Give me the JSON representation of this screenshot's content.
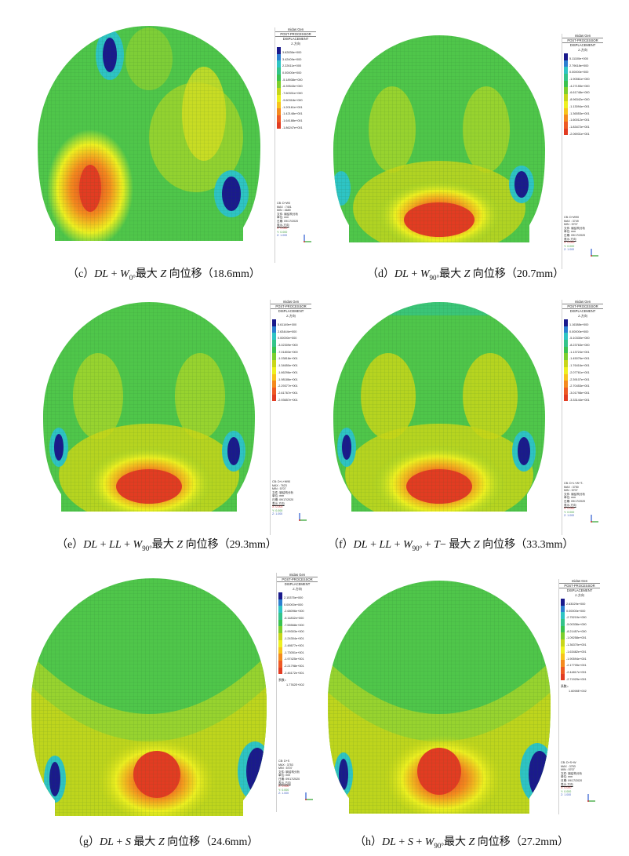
{
  "legend_header": {
    "product": "midas Gen",
    "processor": "POST-PROCESSOR",
    "result": "DISPLACEMENT",
    "component": "Z-方向"
  },
  "legend_colors": [
    "#1a1a8c",
    "#2b7fd0",
    "#2ec4c4",
    "#33c48a",
    "#39c24f",
    "#7ccf2c",
    "#c8d619",
    "#eef020",
    "#f7c41c",
    "#f48a1e",
    "#ee5a24",
    "#e23c22"
  ],
  "panels": [
    {
      "id": "c",
      "caption": {
        "prefix": "（c）",
        "p1": "DL",
        "plus1": " + ",
        "p2": "W",
        "sub": "0°",
        "rest": "最大 ",
        "z": "Z",
        "tail": " 向位移（18.6mm）"
      },
      "legend_values": [
        "3.62836e+000",
        "3.42409e+000",
        "2.22611e+000",
        "0.00000e+000",
        "-5.18938e+000",
        "-6.39543e+000",
        "-7.60331e+000",
        "-9.60318e+000",
        "-1.20161e+001",
        "-1.42148e+001",
        "-1.64188e+001",
        "-1.86247e+001"
      ],
      "info": {
        "cb": "CB: D+W0",
        "max": "MAX : 7401",
        "min": "MIN : 4689",
        "file": "文件: 钢结构分析",
        "unit": "单位: mm",
        "date": "日期: 09/17/2020",
        "view": "表示-方向",
        "x": "X: 0.000",
        "y": "Y: 0.000",
        "z": "Z: 1.000"
      }
    },
    {
      "id": "d",
      "caption": {
        "prefix": "（d）",
        "p1": "DL",
        "plus1": " + ",
        "p2": "W",
        "sub": "90°",
        "rest": "最大 ",
        "z": "Z",
        "tail": " 向位移（20.7mm）"
      },
      "legend_values": [
        "5.11100e+000",
        "2.79618e+000",
        "0.00000e+000",
        "-1.90561e+000",
        "-4.27155e+000",
        "-6.61748e+000",
        "-8.96342e+000",
        "-1.13094e+001",
        "-1.36553e+001",
        "-1.60012e+001",
        "-1.83472e+001",
        "-2.06931e+001"
      ],
      "info": {
        "cb": "CB: D+W90",
        "max": "MAX : 3749",
        "min": "MIN : 5707",
        "file": "文件: 钢结构分析",
        "unit": "单位: mm",
        "date": "日期: 09/17/2020",
        "view": "表示-方向",
        "x": "X: 0.000",
        "y": "Y: 0.000",
        "z": "Z: 1.000"
      }
    },
    {
      "id": "e",
      "caption": {
        "prefix": "（e）",
        "p1": "DL",
        "plus1": " + ",
        "p2": "LL",
        "plus2": " + ",
        "p3": "W",
        "sub": "90°",
        "rest": "最大 ",
        "z": "Z",
        "tail": " 向位移（29.3mm）"
      },
      "legend_values": [
        "5.61149e+000",
        "2.63444e+000",
        "0.00000e+000",
        "-3.02309e+000",
        "-7.01803e+000",
        "-1.03818e+001",
        "-1.34650e+001",
        "-1.66296e+001",
        "-1.98186e+001",
        "-2.29377e+001",
        "-2.61767e+001",
        "-2.93657e+001"
      ],
      "info": {
        "cb": "CB: D+L+W90",
        "max": "MAX : 7623",
        "min": "MIN : 5707",
        "file": "文件: 钢结构分析",
        "unit": "单位: mm",
        "date": "日期: 09/17/2020",
        "view": "表示-方向",
        "x": "X: 0.000",
        "y": "Y: 0.000",
        "z": "Z: 1.000"
      }
    },
    {
      "id": "f",
      "caption": {
        "prefix": "（f）",
        "p1": "DL",
        "plus1": " + ",
        "p2": "LL",
        "plus2": " + ",
        "p3": "W",
        "sub": "90°",
        "plus3": " + ",
        "p4": "T",
        "minus": "− ",
        "rest": "最大 ",
        "z": "Z",
        "tail": " 向位移（33.3mm）"
      },
      "legend_values": [
        "1.16388e+000",
        "0.00000e+000",
        "-5.10330e+000",
        "-8.23763e+000",
        "-1.13724e+001",
        "-1.45076e+001",
        "-1.76416e+001",
        "-2.07761e+001",
        "-2.39107e+001",
        "-2.70453e+001",
        "-3.01798e+001",
        "-3.33144e+001"
      ],
      "info": {
        "cb": "CB: D+L+W+T-",
        "max": "MAX : 3750",
        "min": "MIN : 5707",
        "file": "文件: 钢结构分析",
        "unit": "单位: mm",
        "date": "日期: 09/17/2020",
        "view": "表示-方向",
        "x": "X: 0.000",
        "y": "Y: 0.000",
        "z": "Z: 1.000"
      }
    },
    {
      "id": "g",
      "caption": {
        "prefix": "（g）",
        "p1": "DL",
        "plus1": " + ",
        "p2": "S",
        "rest": " 最大 ",
        "z": "Z",
        "tail": " 向位移（24.6mm）"
      },
      "legend_values": [
        "2.15375e+000",
        "0.00000e+000",
        "-2.68096e+000",
        "-5.11832e+000",
        "-7.55568e+000",
        "-9.99303e+000",
        "-1.24304e+001",
        "-1.48677e+001",
        "-1.73051e+001",
        "-1.97425e+001",
        "-2.21798e+001",
        "-2.46172e+001"
      ],
      "coef_label": "系数=",
      "coef_value": "1.7782E+002",
      "info": {
        "cb": "CB: D+S",
        "max": "MAX : 3753",
        "min": "MIN : 5707",
        "file": "文件: 钢结构分析",
        "unit": "单位: mm",
        "date": "日期: 09/17/2020",
        "view": "表示-方向",
        "x": "X: 0.000",
        "y": "Y: 0.000",
        "z": "Z: 1.000"
      }
    },
    {
      "id": "h",
      "caption": {
        "prefix": "（h）",
        "p1": "DL",
        "plus1": " + ",
        "p2": "S",
        "plus2": " + ",
        "p3": "W",
        "sub": "90°",
        "rest": "最大 ",
        "z": "Z",
        "tail": " 向位移（27.2mm）"
      },
      "legend_values": [
        "2.63029e+000",
        "0.00000e+000",
        "-2.75219e+000",
        "-5.00336e+000",
        "-8.21457e+000",
        "-1.09258e+001",
        "-1.36370e+001",
        "-1.63482e+001",
        "-1.90594e+001",
        "-2.17705e+001",
        "-2.44817e+001",
        "-2.71929e+001"
      ],
      "coef_label": "系数=",
      "coef_value": "1.6098E+002",
      "info": {
        "cb": "CB: D+S+W",
        "max": "MAX : 3753",
        "min": "MIN : 5707",
        "file": "文件: 钢结构分析",
        "unit": "单位: mm",
        "date": "日期: 09/17/2020",
        "view": "表示-方向",
        "x": "X: 0.000",
        "y": "Y: 0.000",
        "z": "Z: 1.000"
      }
    }
  ]
}
